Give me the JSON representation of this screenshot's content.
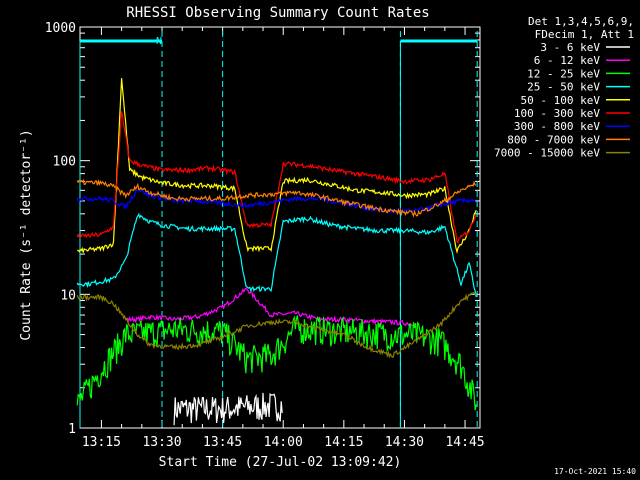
{
  "chart_data": {
    "type": "line",
    "title": "RHESSI Observing Summary Count Rates",
    "xlabel": "Start Time (27-Jul-02 13:09:42)",
    "ylabel": "Count Rate (s⁻¹ detector⁻¹)",
    "yscale": "log",
    "ylim": [
      1,
      1000
    ],
    "xlim_minutes_after_13_09_42": [
      0,
      99
    ],
    "x_ticks": [
      "13:15",
      "13:30",
      "13:45",
      "14:00",
      "14:15",
      "14:30",
      "14:45"
    ],
    "y_ticks": [
      "1",
      "10",
      "100",
      "1000"
    ],
    "legend_header": [
      "Det 1,3,4,5,6,9,",
      "FDecim 1, Att 1"
    ],
    "legend_placement": "right",
    "annotation_marker": "N",
    "footer_date": "17-Oct-2021 15:40",
    "time_markers": [
      13.3,
      13.45,
      14.29,
      14.48
    ],
    "series": [
      {
        "name": "3 - 6 keV",
        "color": "#ffffff",
        "x": [
          "13:09",
          "13:33",
          "13:33",
          "13:45",
          "14:00",
          "14:14",
          "14:29",
          "14:29",
          "14:44",
          "14:48"
        ],
        "y": [
          null,
          null,
          1.4,
          1.4,
          1.5,
          null,
          null,
          null,
          null,
          null
        ]
      },
      {
        "name": "6 - 12 keV",
        "color": "#ff00ff",
        "x": [
          "13:09",
          "13:18",
          "13:21",
          "13:24",
          "13:27",
          "13:33",
          "13:39",
          "13:45",
          "13:51",
          "13:57",
          "14:03",
          "14:09",
          "14:15",
          "14:21",
          "14:27",
          "14:33",
          "14:39",
          "14:44",
          "14:48"
        ],
        "y": [
          null,
          null,
          6.5,
          6.5,
          6.8,
          6.5,
          6.8,
          8.0,
          11.0,
          7.0,
          7.2,
          6.5,
          6.5,
          6.3,
          6.2,
          6.0,
          null,
          null,
          null
        ]
      },
      {
        "name": "12 - 25 keV",
        "color": "#00ff00",
        "x": [
          "13:09",
          "13:21",
          "13:27",
          "13:33",
          "13:39",
          "13:45",
          "13:51",
          "13:57",
          "14:03",
          "14:09",
          "14:15",
          "14:21",
          "14:27",
          "14:33",
          "14:39",
          "14:44",
          "14:48"
        ],
        "y": [
          1.5,
          5.0,
          5.2,
          5.5,
          5.4,
          5.3,
          3.3,
          3.5,
          5.6,
          5.5,
          5.3,
          5.2,
          5.0,
          5.0,
          4.5,
          3.0,
          1.5
        ]
      },
      {
        "name": "25 - 50 keV",
        "color": "#00ffff",
        "x": [
          "13:09",
          "13:12",
          "13:18",
          "13:21",
          "13:24",
          "13:27",
          "13:30",
          "13:36",
          "13:42",
          "13:48",
          "13:51",
          "13:57",
          "14:00",
          "14:06",
          "14:12",
          "14:18",
          "14:24",
          "14:30",
          "14:36",
          "14:40",
          "14:44",
          "14:46",
          "14:48"
        ],
        "y": [
          12.0,
          12.0,
          13.0,
          18.0,
          40.0,
          35.0,
          33.0,
          31.0,
          31.0,
          31.0,
          11.0,
          11.0,
          35.0,
          37.0,
          33.0,
          31.0,
          30.0,
          30.0,
          29.0,
          32.0,
          12.0,
          17.0,
          9.0
        ]
      },
      {
        "name": "50 - 100 keV",
        "color": "#ffff00",
        "x": [
          "13:09",
          "13:15",
          "13:18",
          "13:20",
          "13:22",
          "13:25",
          "13:30",
          "13:36",
          "13:42",
          "13:48",
          "13:51",
          "13:57",
          "14:00",
          "14:06",
          "14:12",
          "14:18",
          "14:24",
          "14:30",
          "14:36",
          "14:40",
          "14:43",
          "14:46",
          "14:48"
        ],
        "y": [
          21.0,
          22.0,
          24.0,
          420.0,
          85.0,
          75.0,
          68.0,
          65.0,
          65.0,
          62.0,
          22.0,
          22.0,
          70.0,
          72.0,
          66.0,
          60.0,
          58.0,
          55.0,
          56.0,
          62.0,
          21.0,
          30.0,
          45.0
        ]
      },
      {
        "name": "100 - 300 keV",
        "color": "#ff0000",
        "x": [
          "13:09",
          "13:15",
          "13:18",
          "13:20",
          "13:22",
          "13:25",
          "13:30",
          "13:36",
          "13:42",
          "13:48",
          "13:51",
          "13:57",
          "14:00",
          "14:06",
          "14:12",
          "14:18",
          "14:24",
          "14:30",
          "14:36",
          "14:40",
          "14:43",
          "14:46",
          "14:48"
        ],
        "y": [
          27.0,
          28.0,
          32.0,
          230.0,
          100.0,
          92.0,
          85.0,
          85.0,
          88.0,
          82.0,
          33.0,
          33.0,
          95.0,
          92.0,
          85.0,
          80.0,
          75.0,
          70.0,
          72.0,
          80.0,
          25.0,
          30.0,
          42.0
        ]
      },
      {
        "name": "300 - 800 keV",
        "color": "#0000ff",
        "x": [
          "13:09",
          "13:15",
          "13:18",
          "13:21",
          "13:24",
          "13:27",
          "13:33",
          "13:39",
          "13:45",
          "13:51",
          "13:57",
          "14:03",
          "14:09",
          "14:15",
          "14:21",
          "14:27",
          "14:33",
          "14:39",
          "14:44",
          "14:48"
        ],
        "y": [
          52.0,
          52.0,
          50.0,
          45.0,
          62.0,
          55.0,
          50.0,
          50.0,
          48.0,
          46.0,
          49.0,
          52.0,
          52.0,
          48.0,
          44.0,
          42.0,
          42.0,
          47.0,
          50.0,
          51.0
        ]
      },
      {
        "name": "800 - 7000 keV",
        "color": "#ff8000",
        "x": [
          "13:09",
          "13:15",
          "13:18",
          "13:21",
          "13:24",
          "13:27",
          "13:33",
          "13:39",
          "13:45",
          "13:51",
          "13:57",
          "14:03",
          "14:09",
          "14:15",
          "14:21",
          "14:27",
          "14:33",
          "14:39",
          "14:44",
          "14:48"
        ],
        "y": [
          69.0,
          68.0,
          64.0,
          55.0,
          64.0,
          58.0,
          52.0,
          52.0,
          52.0,
          55.0,
          56.0,
          58.0,
          54.0,
          49.0,
          45.0,
          42.0,
          40.0,
          48.0,
          60.0,
          68.0
        ]
      },
      {
        "name": "7000 - 15000 keV",
        "color": "#8b8000",
        "x": [
          "13:09",
          "13:15",
          "13:18",
          "13:21",
          "13:24",
          "13:27",
          "13:33",
          "13:39",
          "13:45",
          "13:51",
          "13:57",
          "14:03",
          "14:09",
          "14:15",
          "14:21",
          "14:27",
          "14:33",
          "14:39",
          "14:44",
          "14:48"
        ],
        "y": [
          9.5,
          9.5,
          8.5,
          6.5,
          5.0,
          4.2,
          4.0,
          4.2,
          4.8,
          5.8,
          6.2,
          6.2,
          5.5,
          5.0,
          4.0,
          3.5,
          4.5,
          6.0,
          9.0,
          10.5
        ]
      }
    ]
  }
}
